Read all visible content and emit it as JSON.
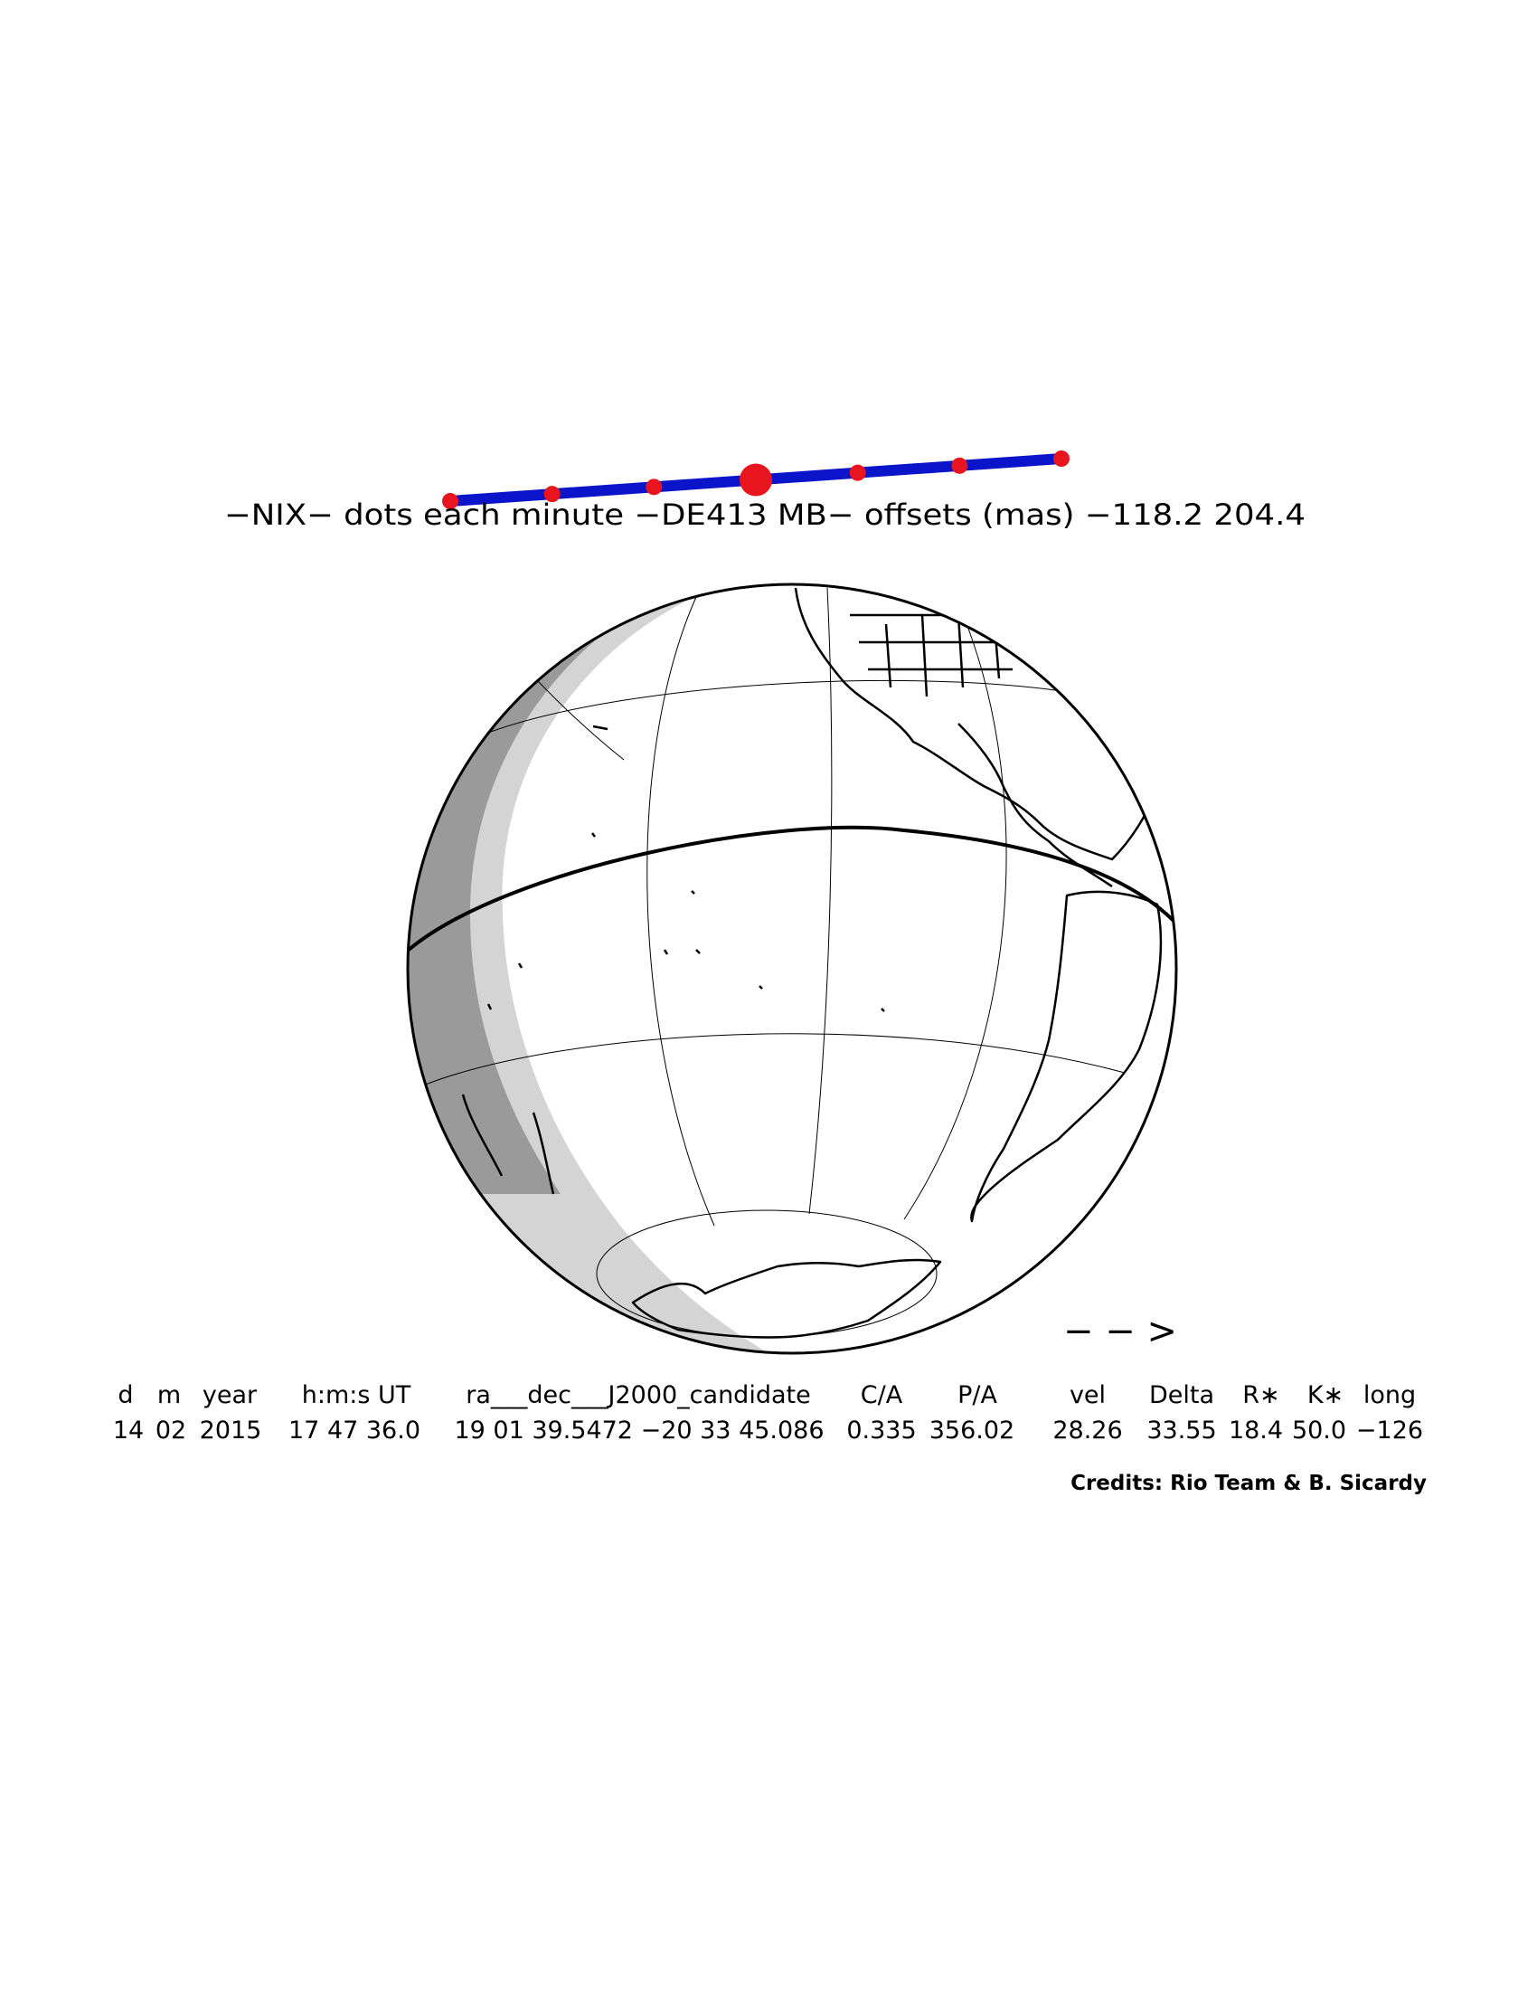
{
  "header": {
    "caption": "−NIX− dots each minute −DE413 MB− offsets (mas) −118.2   204.4"
  },
  "track": {
    "line_color": "#0a14c8",
    "dot_color": "#e8141e",
    "dot_count": 7,
    "center_dot_index": 3
  },
  "globe": {
    "night_shade_dark": "#9a9a9a",
    "night_shade_light": "#d4d4d4",
    "outline_color": "#000000"
  },
  "direction_arrow": {
    "text": "− − >"
  },
  "table": {
    "headers": [
      "d",
      "m",
      "year",
      "h:m:s UT",
      "ra___dec___J2000_candidate",
      "C/A",
      "P/A",
      "vel",
      "Delta",
      "R∗",
      "K∗",
      "long"
    ],
    "values": [
      "14",
      "02",
      "2015",
      "17 47 36.0",
      "19 01 39.5472 −20 33 45.086",
      "0.335",
      "356.02",
      "28.26",
      "33.55",
      "18.4",
      "50.0",
      "−126"
    ]
  },
  "credits": {
    "text": "Credits: Rio Team & B. Sicardy"
  }
}
